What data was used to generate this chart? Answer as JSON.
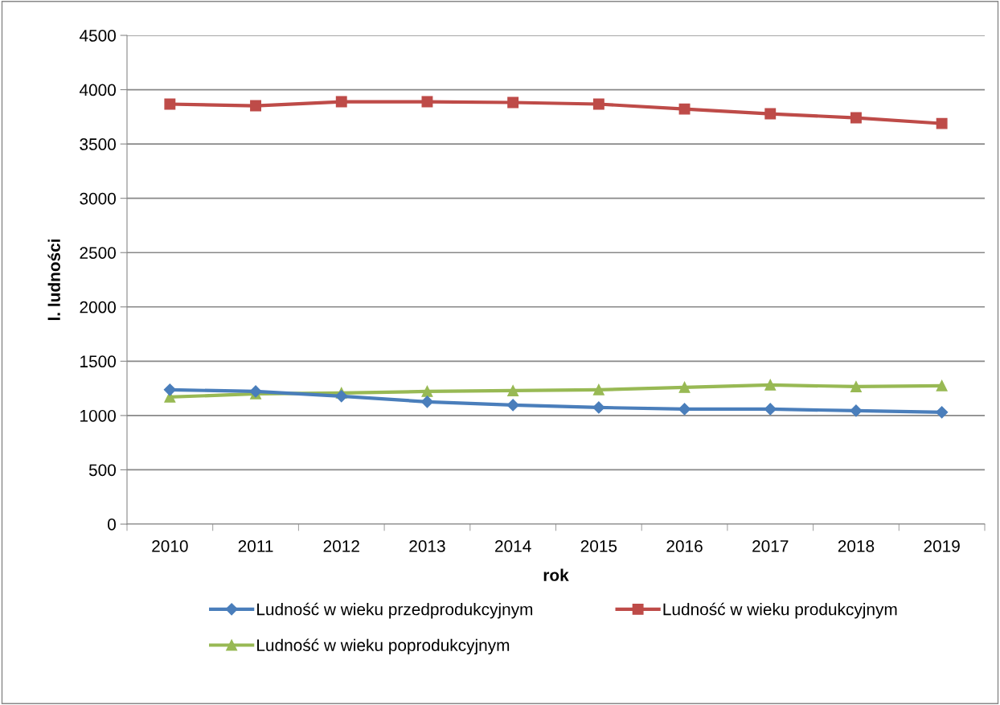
{
  "chart_data": {
    "type": "line",
    "xlabel": "rok",
    "ylabel": "l. ludności",
    "categories": [
      "2010",
      "2011",
      "2012",
      "2013",
      "2014",
      "2015",
      "2016",
      "2017",
      "2018",
      "2019"
    ],
    "series": [
      {
        "name": "Ludność w wieku przedprodukcyjnym",
        "color": "#4a7ebb",
        "marker": "diamond",
        "values": [
          1237,
          1222,
          1178,
          1126,
          1096,
          1074,
          1059,
          1059,
          1044,
          1030
        ]
      },
      {
        "name": "Ludność w wieku produkcyjnym",
        "color": "#be4b48",
        "marker": "square",
        "values": [
          3867,
          3852,
          3889,
          3889,
          3882,
          3867,
          3822,
          3778,
          3741,
          3689
        ]
      },
      {
        "name": "Ludność w wieku poprodukcyjnym",
        "color": "#98b954",
        "marker": "triangle",
        "values": [
          1170,
          1200,
          1207,
          1222,
          1229,
          1237,
          1259,
          1281,
          1266,
          1274
        ]
      }
    ],
    "ylim": [
      0,
      4500
    ],
    "yticks": [
      0,
      500,
      1000,
      1500,
      2000,
      2500,
      3000,
      3500,
      4000,
      4500
    ],
    "grid": "y",
    "legend": "bottom",
    "line_style": "solid"
  }
}
